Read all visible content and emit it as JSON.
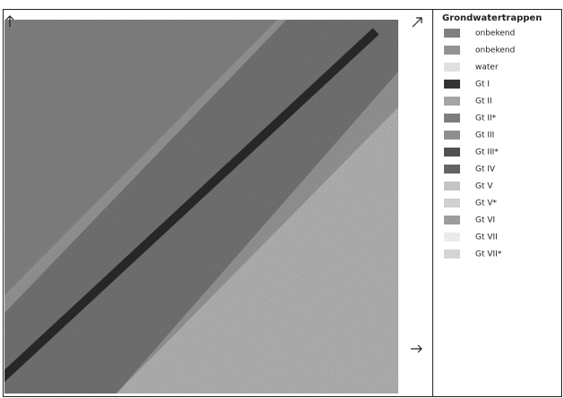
{
  "legend": {
    "title": "Grondwatertrappen",
    "items": [
      {
        "label": "onbekend",
        "color": "#8c8c8c"
      },
      {
        "label": "onbekend",
        "color": "#a0a0a0"
      },
      {
        "label": "water",
        "color": "#f4f4f4"
      },
      {
        "label": "Gt I",
        "color": "#3a3a3a"
      },
      {
        "label": "Gt II",
        "color": "#b4b4b4"
      },
      {
        "label": "Gt II*",
        "color": "#8a8a8a"
      },
      {
        "label": "Gt III",
        "color": "#9c9c9c"
      },
      {
        "label": "Gt III*",
        "color": "#5a5a5a"
      },
      {
        "label": "Gt IV",
        "color": "#6e6e6e"
      },
      {
        "label": "Gt V",
        "color": "#d6d6d6"
      },
      {
        "label": "Gt V*",
        "color": "#e2e2e2"
      },
      {
        "label": "Gt VI",
        "color": "#aaaaaa"
      },
      {
        "label": "Gt VII",
        "color": "#ffffff"
      },
      {
        "label": "Gt VII*",
        "color": "#e8e8e8"
      }
    ]
  }
}
